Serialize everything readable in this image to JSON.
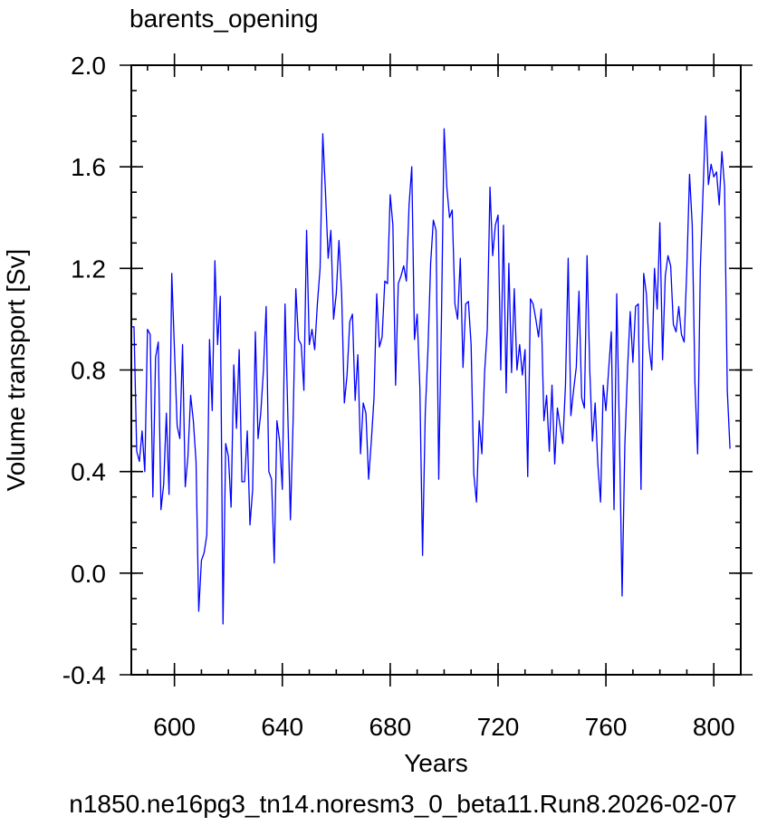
{
  "chart_data": {
    "type": "line",
    "title": "barents_opening",
    "xlabel": "Years",
    "ylabel": "Volume transport [Sv]",
    "footer": "n1850.ne16pg3_tn14.noresm3_0_beta11.Run8.2026-02-07",
    "xlim": [
      584,
      810
    ],
    "ylim": [
      -0.4,
      2.0
    ],
    "xticks": [
      600,
      640,
      680,
      720,
      760,
      800
    ],
    "yticks": [
      -0.4,
      0.0,
      0.4,
      0.8,
      1.2,
      1.6,
      2.0
    ],
    "xtick_labels": [
      "600",
      "640",
      "680",
      "720",
      "760",
      "800"
    ],
    "ytick_labels": [
      "-0.4",
      "0.0",
      "0.4",
      "0.8",
      "1.2",
      "1.6",
      "2.0"
    ],
    "xminor_step": 10,
    "yminor_step": 0.1,
    "grid": false,
    "colors": {
      "series": "#0000ff",
      "footer": "#0000ff",
      "axis": "#000000"
    },
    "series": [
      {
        "x_start": 584,
        "x_step": 1,
        "values": [
          0.97,
          0.97,
          0.48,
          0.44,
          0.56,
          0.4,
          0.96,
          0.94,
          0.3,
          0.85,
          0.91,
          0.25,
          0.35,
          0.63,
          0.31,
          1.18,
          0.88,
          0.58,
          0.53,
          0.9,
          0.34,
          0.46,
          0.7,
          0.6,
          0.44,
          -0.15,
          0.05,
          0.08,
          0.15,
          0.92,
          0.64,
          1.23,
          0.9,
          1.09,
          -0.2,
          0.51,
          0.46,
          0.26,
          0.82,
          0.57,
          0.88,
          0.36,
          0.36,
          0.56,
          0.19,
          0.33,
          0.95,
          0.53,
          0.63,
          0.8,
          1.05,
          0.4,
          0.37,
          0.04,
          0.6,
          0.52,
          0.33,
          1.06,
          0.64,
          0.21,
          0.6,
          1.12,
          0.92,
          0.9,
          0.72,
          1.35,
          0.9,
          0.96,
          0.88,
          1.06,
          1.2,
          1.73,
          1.5,
          1.24,
          1.35,
          1.0,
          1.1,
          1.31,
          1.1,
          0.67,
          0.78,
          0.99,
          1.02,
          0.68,
          0.86,
          0.47,
          0.67,
          0.63,
          0.37,
          0.52,
          0.69,
          1.1,
          0.89,
          0.93,
          1.15,
          1.14,
          1.49,
          1.37,
          0.74,
          1.14,
          1.17,
          1.21,
          1.15,
          1.45,
          1.6,
          0.92,
          1.02,
          0.73,
          0.07,
          0.63,
          0.88,
          1.22,
          1.39,
          1.35,
          0.37,
          1.0,
          1.75,
          1.52,
          1.4,
          1.43,
          1.06,
          1.0,
          1.24,
          0.81,
          1.06,
          1.07,
          0.9,
          0.39,
          0.28,
          0.6,
          0.47,
          0.79,
          0.96,
          1.52,
          1.25,
          1.37,
          1.41,
          0.8,
          1.37,
          0.71,
          1.22,
          0.79,
          1.12,
          0.8,
          0.9,
          0.78,
          0.88,
          0.38,
          1.08,
          1.06,
          1.0,
          0.93,
          1.04,
          0.6,
          0.7,
          0.48,
          0.74,
          0.43,
          0.65,
          0.58,
          0.51,
          0.74,
          1.24,
          0.62,
          0.72,
          0.81,
          1.11,
          0.69,
          0.65,
          1.25,
          0.8,
          0.52,
          0.67,
          0.43,
          0.28,
          0.74,
          0.64,
          0.8,
          0.95,
          0.25,
          1.1,
          0.55,
          -0.09,
          0.5,
          0.8,
          1.03,
          0.83,
          1.05,
          1.06,
          0.33,
          1.18,
          1.1,
          0.89,
          0.8,
          1.2,
          1.04,
          1.38,
          0.84,
          1.17,
          1.25,
          1.21,
          0.98,
          0.95,
          1.05,
          0.94,
          0.91,
          1.2,
          1.57,
          1.37,
          0.75,
          0.47,
          1.2,
          1.5,
          1.8,
          1.53,
          1.61,
          1.56,
          1.58,
          1.45,
          1.66,
          1.52,
          0.72,
          0.49
        ]
      }
    ]
  }
}
